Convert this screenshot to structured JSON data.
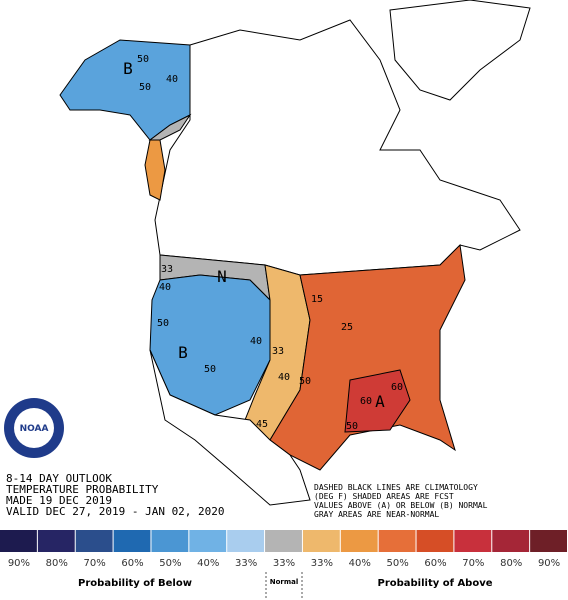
{
  "header": {
    "lines": [
      "8-14 DAY OUTLOOK",
      "TEMPERATURE PROBABILITY",
      "MADE  19 DEC 2019",
      "VALID  DEC 27, 2019 - JAN 02, 2020"
    ]
  },
  "note": {
    "lines": [
      "DASHED BLACK LINES ARE CLIMATOLOGY",
      "(DEG F) SHADED AREAS ARE FCST",
      "VALUES ABOVE (A) OR BELOW (B) NORMAL",
      "GRAY AREAS ARE NEAR-NORMAL"
    ]
  },
  "logo": "NOAA",
  "map_labels": [
    "B",
    "50",
    "40",
    "50",
    "N",
    "33",
    "40",
    "50",
    "B",
    "50",
    "40",
    "33",
    "40",
    "50",
    "45",
    "25",
    "15",
    "60",
    "60",
    "A",
    "50"
  ],
  "legend": {
    "bins": [
      {
        "label": "90%",
        "color": "#1d1b4f"
      },
      {
        "label": "80%",
        "color": "#262564"
      },
      {
        "label": "70%",
        "color": "#2b4e8c"
      },
      {
        "label": "60%",
        "color": "#1f69b1"
      },
      {
        "label": "50%",
        "color": "#4b96d3"
      },
      {
        "label": "40%",
        "color": "#70b2e5"
      },
      {
        "label": "33%",
        "color": "#a9cdee"
      },
      {
        "label": "33%",
        "color": "#b4b4b4"
      },
      {
        "label": "33%",
        "color": "#eeb86c"
      },
      {
        "label": "40%",
        "color": "#ec9943"
      },
      {
        "label": "50%",
        "color": "#e66f39"
      },
      {
        "label": "60%",
        "color": "#d64e26"
      },
      {
        "label": "70%",
        "color": "#c8303c"
      },
      {
        "label": "80%",
        "color": "#a52637"
      },
      {
        "label": "90%",
        "color": "#6e1f27"
      }
    ],
    "below": "Probability of Below",
    "normal": "Normal",
    "above": "Probability of Above"
  }
}
